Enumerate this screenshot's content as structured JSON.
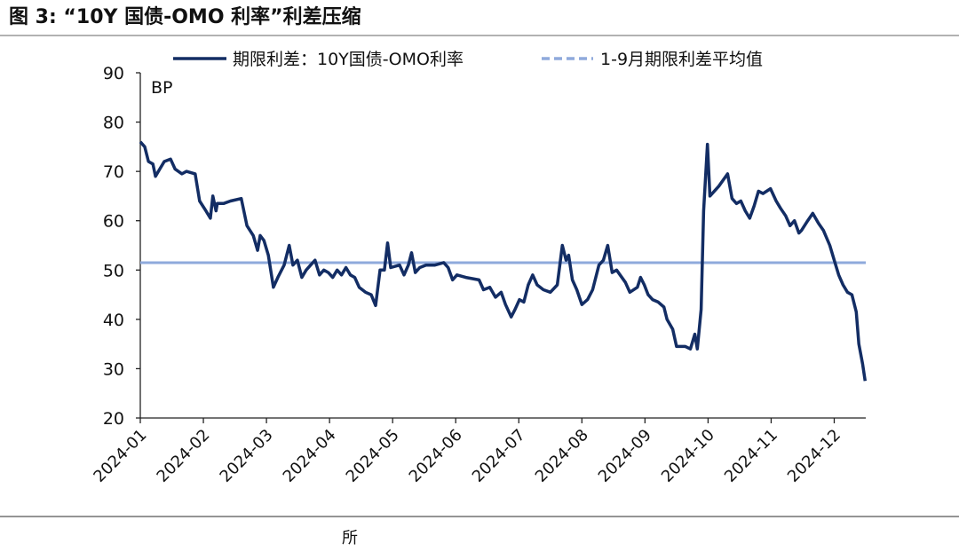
{
  "chart_data": {
    "type": "line",
    "title": "图 3:  “10Y 国债-OMO 利率”利差压缩",
    "y_label": "BP",
    "source": "所",
    "series": [
      {
        "name": "期限利差：10Y国债-OMO利率",
        "color": "#132d64",
        "x": [
          1.0,
          1.07,
          1.13,
          1.2,
          1.24,
          1.31,
          1.38,
          1.48,
          1.55,
          1.66,
          1.73,
          1.87,
          1.94,
          2.04,
          2.11,
          2.15,
          2.2,
          2.22,
          2.32,
          2.43,
          2.6,
          2.69,
          2.79,
          2.86,
          2.9,
          2.96,
          3.03,
          3.11,
          3.18,
          3.28,
          3.36,
          3.42,
          3.49,
          3.56,
          3.63,
          3.7,
          3.77,
          3.84,
          3.91,
          3.98,
          4.05,
          4.12,
          4.19,
          4.26,
          4.33,
          4.4,
          4.47,
          4.57,
          4.66,
          4.73,
          4.8,
          4.87,
          4.92,
          4.97,
          5.11,
          5.18,
          5.25,
          5.3,
          5.36,
          5.43,
          5.53,
          5.67,
          5.81,
          5.88,
          5.95,
          6.02,
          6.16,
          6.37,
          6.44,
          6.54,
          6.63,
          6.72,
          6.79,
          6.88,
          6.94,
          7.01,
          7.08,
          7.15,
          7.22,
          7.29,
          7.39,
          7.5,
          7.61,
          7.69,
          7.75,
          7.79,
          7.85,
          7.92,
          8.0,
          8.09,
          8.17,
          8.27,
          8.34,
          8.41,
          8.48,
          8.55,
          8.69,
          8.76,
          8.88,
          8.93,
          8.99,
          9.05,
          9.12,
          9.21,
          9.3,
          9.35,
          9.44,
          9.5,
          9.64,
          9.72,
          9.79,
          9.83,
          9.89,
          9.93,
          9.99,
          10.03,
          10.17,
          10.31,
          10.38,
          10.45,
          10.52,
          10.59,
          10.66,
          10.73,
          10.8,
          10.87,
          10.99,
          11.08,
          11.15,
          11.23,
          11.3,
          11.37,
          11.44,
          11.48,
          11.58,
          11.66,
          11.75,
          11.83,
          11.93,
          12.0,
          12.07,
          12.14,
          12.21,
          12.28,
          12.35,
          12.39,
          12.45,
          12.49
        ],
        "values": [
          76,
          75,
          72,
          71.5,
          69,
          70.5,
          72,
          72.5,
          70.5,
          69.5,
          70,
          69.5,
          64,
          62,
          60.5,
          65,
          62,
          63.5,
          63.5,
          64,
          64.5,
          59,
          57,
          54,
          57,
          56,
          53,
          46.5,
          48.5,
          51,
          55,
          51,
          52,
          48.5,
          50,
          51,
          52,
          49,
          50,
          49.5,
          48.5,
          50,
          49,
          50.5,
          49,
          48.5,
          46.5,
          45.5,
          45,
          42.8,
          50,
          50,
          55.5,
          50.5,
          51,
          49,
          51,
          53.5,
          49.5,
          50.5,
          51,
          51,
          51.5,
          50.5,
          48,
          49,
          48.5,
          48,
          46,
          46.5,
          44.5,
          45.5,
          43,
          40.5,
          42,
          44,
          43.5,
          47,
          49,
          47,
          46,
          45.5,
          47,
          55,
          52,
          53,
          48,
          46,
          43,
          44,
          46,
          51,
          52,
          55,
          49.5,
          50,
          47.5,
          45.5,
          46.5,
          48.5,
          47,
          45,
          44,
          43.5,
          42.5,
          40,
          38,
          34.5,
          34.5,
          34,
          37,
          34,
          42,
          62,
          75.5,
          65,
          67,
          69.5,
          64.5,
          63.5,
          64,
          62,
          60.5,
          63,
          66,
          65.5,
          66.5,
          64,
          62.5,
          61,
          59,
          60,
          57.5,
          58,
          60,
          61.5,
          59.5,
          58,
          55,
          52,
          49,
          47,
          45.5,
          45,
          41.5,
          35,
          31,
          27.5
        ]
      }
    ],
    "hline": {
      "name": "1-9月期限利差平均值",
      "value": 51.5,
      "color": "#8faadc"
    },
    "xlim": [
      1,
      12.5
    ],
    "xticks": [
      {
        "value": 1,
        "label": "2024-01"
      },
      {
        "value": 2,
        "label": "2024-02"
      },
      {
        "value": 3,
        "label": "2024-03"
      },
      {
        "value": 4,
        "label": "2024-04"
      },
      {
        "value": 5,
        "label": "2024-05"
      },
      {
        "value": 6,
        "label": "2024-06"
      },
      {
        "value": 7,
        "label": "2024-07"
      },
      {
        "value": 8,
        "label": "2024-08"
      },
      {
        "value": 9,
        "label": "2024-09"
      },
      {
        "value": 10,
        "label": "2024-10"
      },
      {
        "value": 11,
        "label": "2024-11"
      },
      {
        "value": 12,
        "label": "2024-12"
      }
    ],
    "ylim": [
      20,
      90
    ],
    "yticks": [
      20,
      30,
      40,
      50,
      60,
      70,
      80,
      90
    ],
    "legend": "top"
  }
}
